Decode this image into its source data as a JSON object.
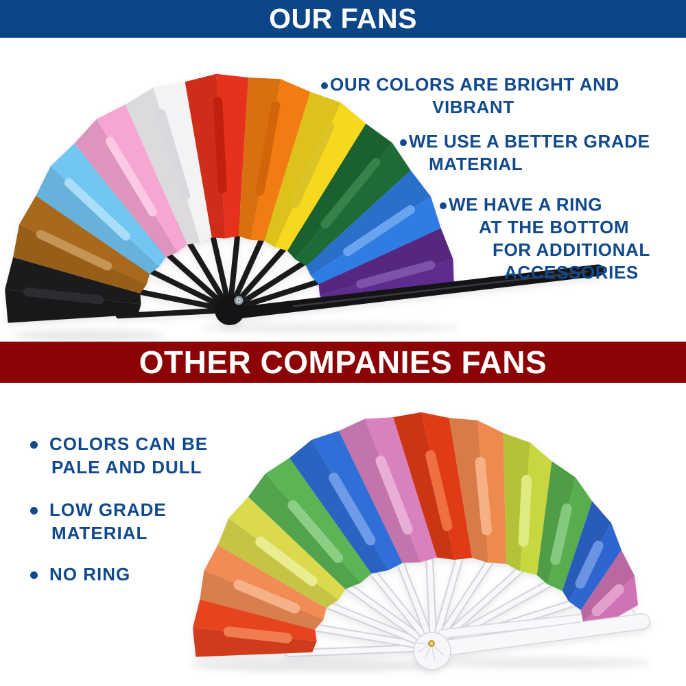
{
  "our_fans": {
    "header": {
      "label": "OUR FANS",
      "bg": "#0d4687",
      "text_color": "#ffffff"
    },
    "text_color": "#11498d",
    "bullets": [
      {
        "lines": [
          "OUR COLORS ARE BRIGHT AND",
          "VIBRANT"
        ]
      },
      {
        "lines": [
          "WE USE A BETTER GRADE",
          "MATERIAL"
        ]
      },
      {
        "lines": [
          "WE HAVE A RING",
          "AT THE BOTTOM",
          "FOR ADDITIONAL",
          "ACCESSORIES"
        ]
      }
    ],
    "fan": {
      "description": "rainbow bamboo clack fan, black ribs, ring rivet at bottom",
      "rib_color": "#1a1a1c",
      "guard_color": "#141416",
      "guard_highlight": "#3a3a3e",
      "rivet_colors": [
        "#969ca4",
        "#dcdfe4",
        "#53565c"
      ],
      "segments": [
        {
          "name": "black",
          "color": "#1b1b1d",
          "imprint": "#2c2c30"
        },
        {
          "name": "brown",
          "color": "#a8681d",
          "imprint": "#c59556"
        },
        {
          "name": "light-blue",
          "color": "#72c6f2",
          "imprint": "#a9ddf8"
        },
        {
          "name": "pink",
          "color": "#f7a6d2",
          "imprint": "#fbc8e5"
        },
        {
          "name": "white",
          "color": "#f3f3f5",
          "imprint": "#d8d9de"
        },
        {
          "name": "red",
          "color": "#e6311d",
          "imprint": "#c2200e"
        },
        {
          "name": "orange",
          "color": "#f07c12",
          "imprint": "#d2650a"
        },
        {
          "name": "yellow",
          "color": "#f6d81e",
          "imprint": "#ddc426"
        },
        {
          "name": "green",
          "color": "#1d6b36",
          "imprint": "#35824a"
        },
        {
          "name": "blue",
          "color": "#2f7ce2",
          "imprint": "#68a5ee"
        },
        {
          "name": "purple",
          "color": "#5e2b8e",
          "imprint": "#7d52aa"
        }
      ]
    }
  },
  "other_fans": {
    "header": {
      "label": "OTHER COMPANIES FANS",
      "bg": "#8b0304",
      "text_color": "#ffffff"
    },
    "text_color": "#11498d",
    "bullets": [
      {
        "lines": [
          "COLORS CAN BE",
          "PALE AND DULL"
        ]
      },
      {
        "lines": [
          "LOW GRADE",
          "MATERIAL"
        ]
      },
      {
        "lines": [
          "NO RING"
        ]
      }
    ],
    "fan": {
      "description": "pale rainbow fan, white plastic ribs, no ring",
      "rib_color": "#f8f8fa",
      "rib_outline": "#d2d3d9",
      "guard_color": "#f8f8fa",
      "guard_outline": "#d6d7dc",
      "handle_color": "#f7f7f9",
      "rivet_colors": [
        "#c9a02c",
        "#eed584"
      ],
      "segments": [
        {
          "name": "red",
          "color": "#e6431f",
          "imprint": "#f07c50"
        },
        {
          "name": "orange",
          "color": "#f18c55",
          "imprint": "#f7b189"
        },
        {
          "name": "yellow",
          "color": "#dbda4d",
          "imprint": "#ebeb90"
        },
        {
          "name": "green",
          "color": "#5cb455",
          "imprint": "#8bce84"
        },
        {
          "name": "blue",
          "color": "#2f6fd7",
          "imprint": "#6d9be7"
        },
        {
          "name": "pink",
          "color": "#d981bd",
          "imprint": "#e9aed6"
        },
        {
          "name": "red-2",
          "color": "#e03b16",
          "imprint": "#ef6f42"
        },
        {
          "name": "orange-2",
          "color": "#ef8a4e",
          "imprint": "#f7b084"
        },
        {
          "name": "yellow-2",
          "color": "#c8d63f",
          "imprint": "#dfea80"
        },
        {
          "name": "green-2",
          "color": "#58ae4f",
          "imprint": "#84c97d"
        },
        {
          "name": "blue-2",
          "color": "#2e66cf",
          "imprint": "#6b94e3"
        },
        {
          "name": "pink-2",
          "color": "#d073b4",
          "imprint": "#e2a0cc"
        }
      ]
    }
  }
}
